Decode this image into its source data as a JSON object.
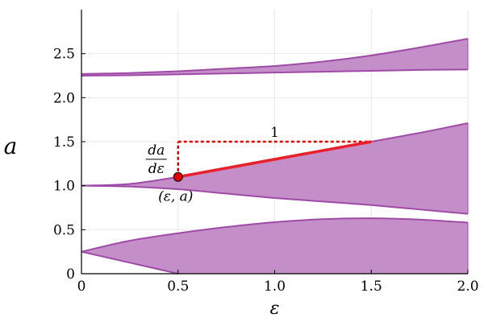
{
  "chart_data": {
    "type": "area",
    "title": "",
    "xlabel": "ε",
    "ylabel": "a",
    "xlim": [
      0,
      2
    ],
    "ylim": [
      0,
      3
    ],
    "xticks": [
      0,
      0.5,
      1.0,
      1.5,
      2.0
    ],
    "xtick_labels": [
      "0",
      "0.5",
      "1.0",
      "1.5",
      "2.0"
    ],
    "yticks": [
      0,
      0.5,
      1.0,
      1.5,
      2.0,
      2.5
    ],
    "ytick_labels": [
      "0",
      "0.5",
      "1.0",
      "1.5",
      "2.0",
      "2.5"
    ],
    "grid": true,
    "colors": {
      "band_fill": "#c48fc8",
      "band_edge": "#a04aa8",
      "tangent": "#e8202a",
      "marker": "#e00000"
    },
    "series": [
      {
        "band": "lower",
        "x": [
          0,
          0.25,
          0.5,
          0.75,
          1.0,
          1.25,
          1.5,
          1.75,
          2.0
        ],
        "upper": [
          0.25,
          0.375,
          0.46,
          0.53,
          0.585,
          0.62,
          0.63,
          0.615,
          0.58
        ],
        "lower": [
          0.25,
          0.125,
          0.0,
          null,
          null,
          null,
          null,
          null,
          null
        ]
      },
      {
        "band": "middle",
        "x": [
          0,
          0.25,
          0.5,
          0.75,
          1.0,
          1.25,
          1.5,
          1.75,
          2.0
        ],
        "upper": [
          1.0,
          1.02,
          1.1,
          1.2,
          1.3,
          1.4,
          1.5,
          1.6,
          1.71
        ],
        "lower": [
          1.0,
          0.99,
          0.96,
          0.91,
          0.86,
          0.82,
          0.78,
          0.73,
          0.68
        ]
      },
      {
        "band": "upper",
        "x": [
          0,
          0.25,
          0.5,
          0.75,
          1.0,
          1.25,
          1.5,
          1.75,
          2.0
        ],
        "upper": [
          2.27,
          2.28,
          2.3,
          2.33,
          2.36,
          2.41,
          2.48,
          2.57,
          2.67
        ],
        "lower": [
          2.25,
          2.255,
          2.265,
          2.275,
          2.285,
          2.295,
          2.305,
          2.315,
          2.32
        ]
      }
    ],
    "annotations": {
      "point": {
        "x": 0.5,
        "y": 1.1,
        "label": "(ε, a)"
      },
      "tangent": {
        "x0": 0.5,
        "y0": 1.1,
        "x1": 1.5,
        "y1": 1.5
      },
      "run_label": "1",
      "slope_label": {
        "numerator": "da",
        "denominator": "dε"
      }
    }
  }
}
